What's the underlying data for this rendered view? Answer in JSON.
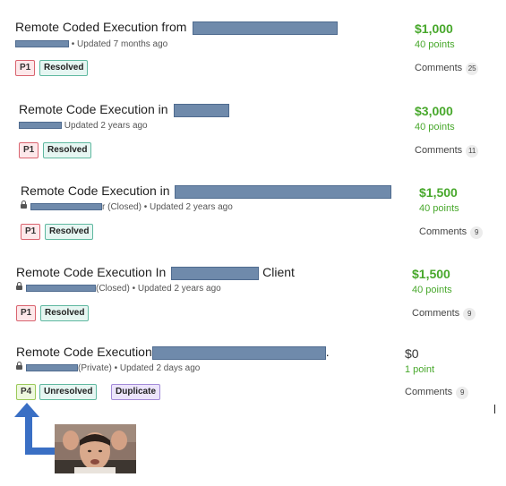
{
  "reports": [
    {
      "title_prefix": "Remote Coded Execution from",
      "title_suffix": "",
      "status_text": "",
      "updated": "• Updated 7 months ago",
      "priority": "P1",
      "badges": [
        "Resolved"
      ],
      "bounty": "$1,000",
      "points": "40 points",
      "comments_label": "Comments",
      "comments_count": "25"
    },
    {
      "title_prefix": "Remote Code Execution in",
      "title_suffix": "",
      "status_text": "",
      "updated": "Updated 2 years ago",
      "priority": "P1",
      "badges": [
        "Resolved"
      ],
      "bounty": "$3,000",
      "points": "40 points",
      "comments_label": "Comments",
      "comments_count": "11"
    },
    {
      "title_prefix": "Remote Code Execution in",
      "title_suffix": "",
      "status_text": "r (Closed)",
      "updated": "• Updated 2 years ago",
      "priority": "P1",
      "badges": [
        "Resolved"
      ],
      "bounty": "$1,500",
      "points": "40 points",
      "comments_label": "Comments",
      "comments_count": "9"
    },
    {
      "title_prefix": "Remote Code Execution In",
      "title_suffix": "Client",
      "status_text": "(Closed)",
      "updated": "• Updated 2 years ago",
      "priority": "P1",
      "badges": [
        "Resolved"
      ],
      "bounty": "$1,500",
      "points": "40 points",
      "comments_label": "Comments",
      "comments_count": "9"
    },
    {
      "title_prefix": "Remote Code Execution",
      "title_suffix": ".",
      "status_text": "(Private)",
      "updated": "• Updated 2 days ago",
      "priority": "P4",
      "badges": [
        "Unresolved",
        "Duplicate"
      ],
      "bounty": "$0",
      "points": "1 point",
      "comments_label": "Comments",
      "comments_count": "9"
    }
  ],
  "colors": {
    "bounty_green": "#48a82c",
    "redaction": "#6f8aab",
    "arrow_blue": "#3a6fc4"
  },
  "icons": [
    "lock-icon",
    "up-arrow-icon"
  ]
}
